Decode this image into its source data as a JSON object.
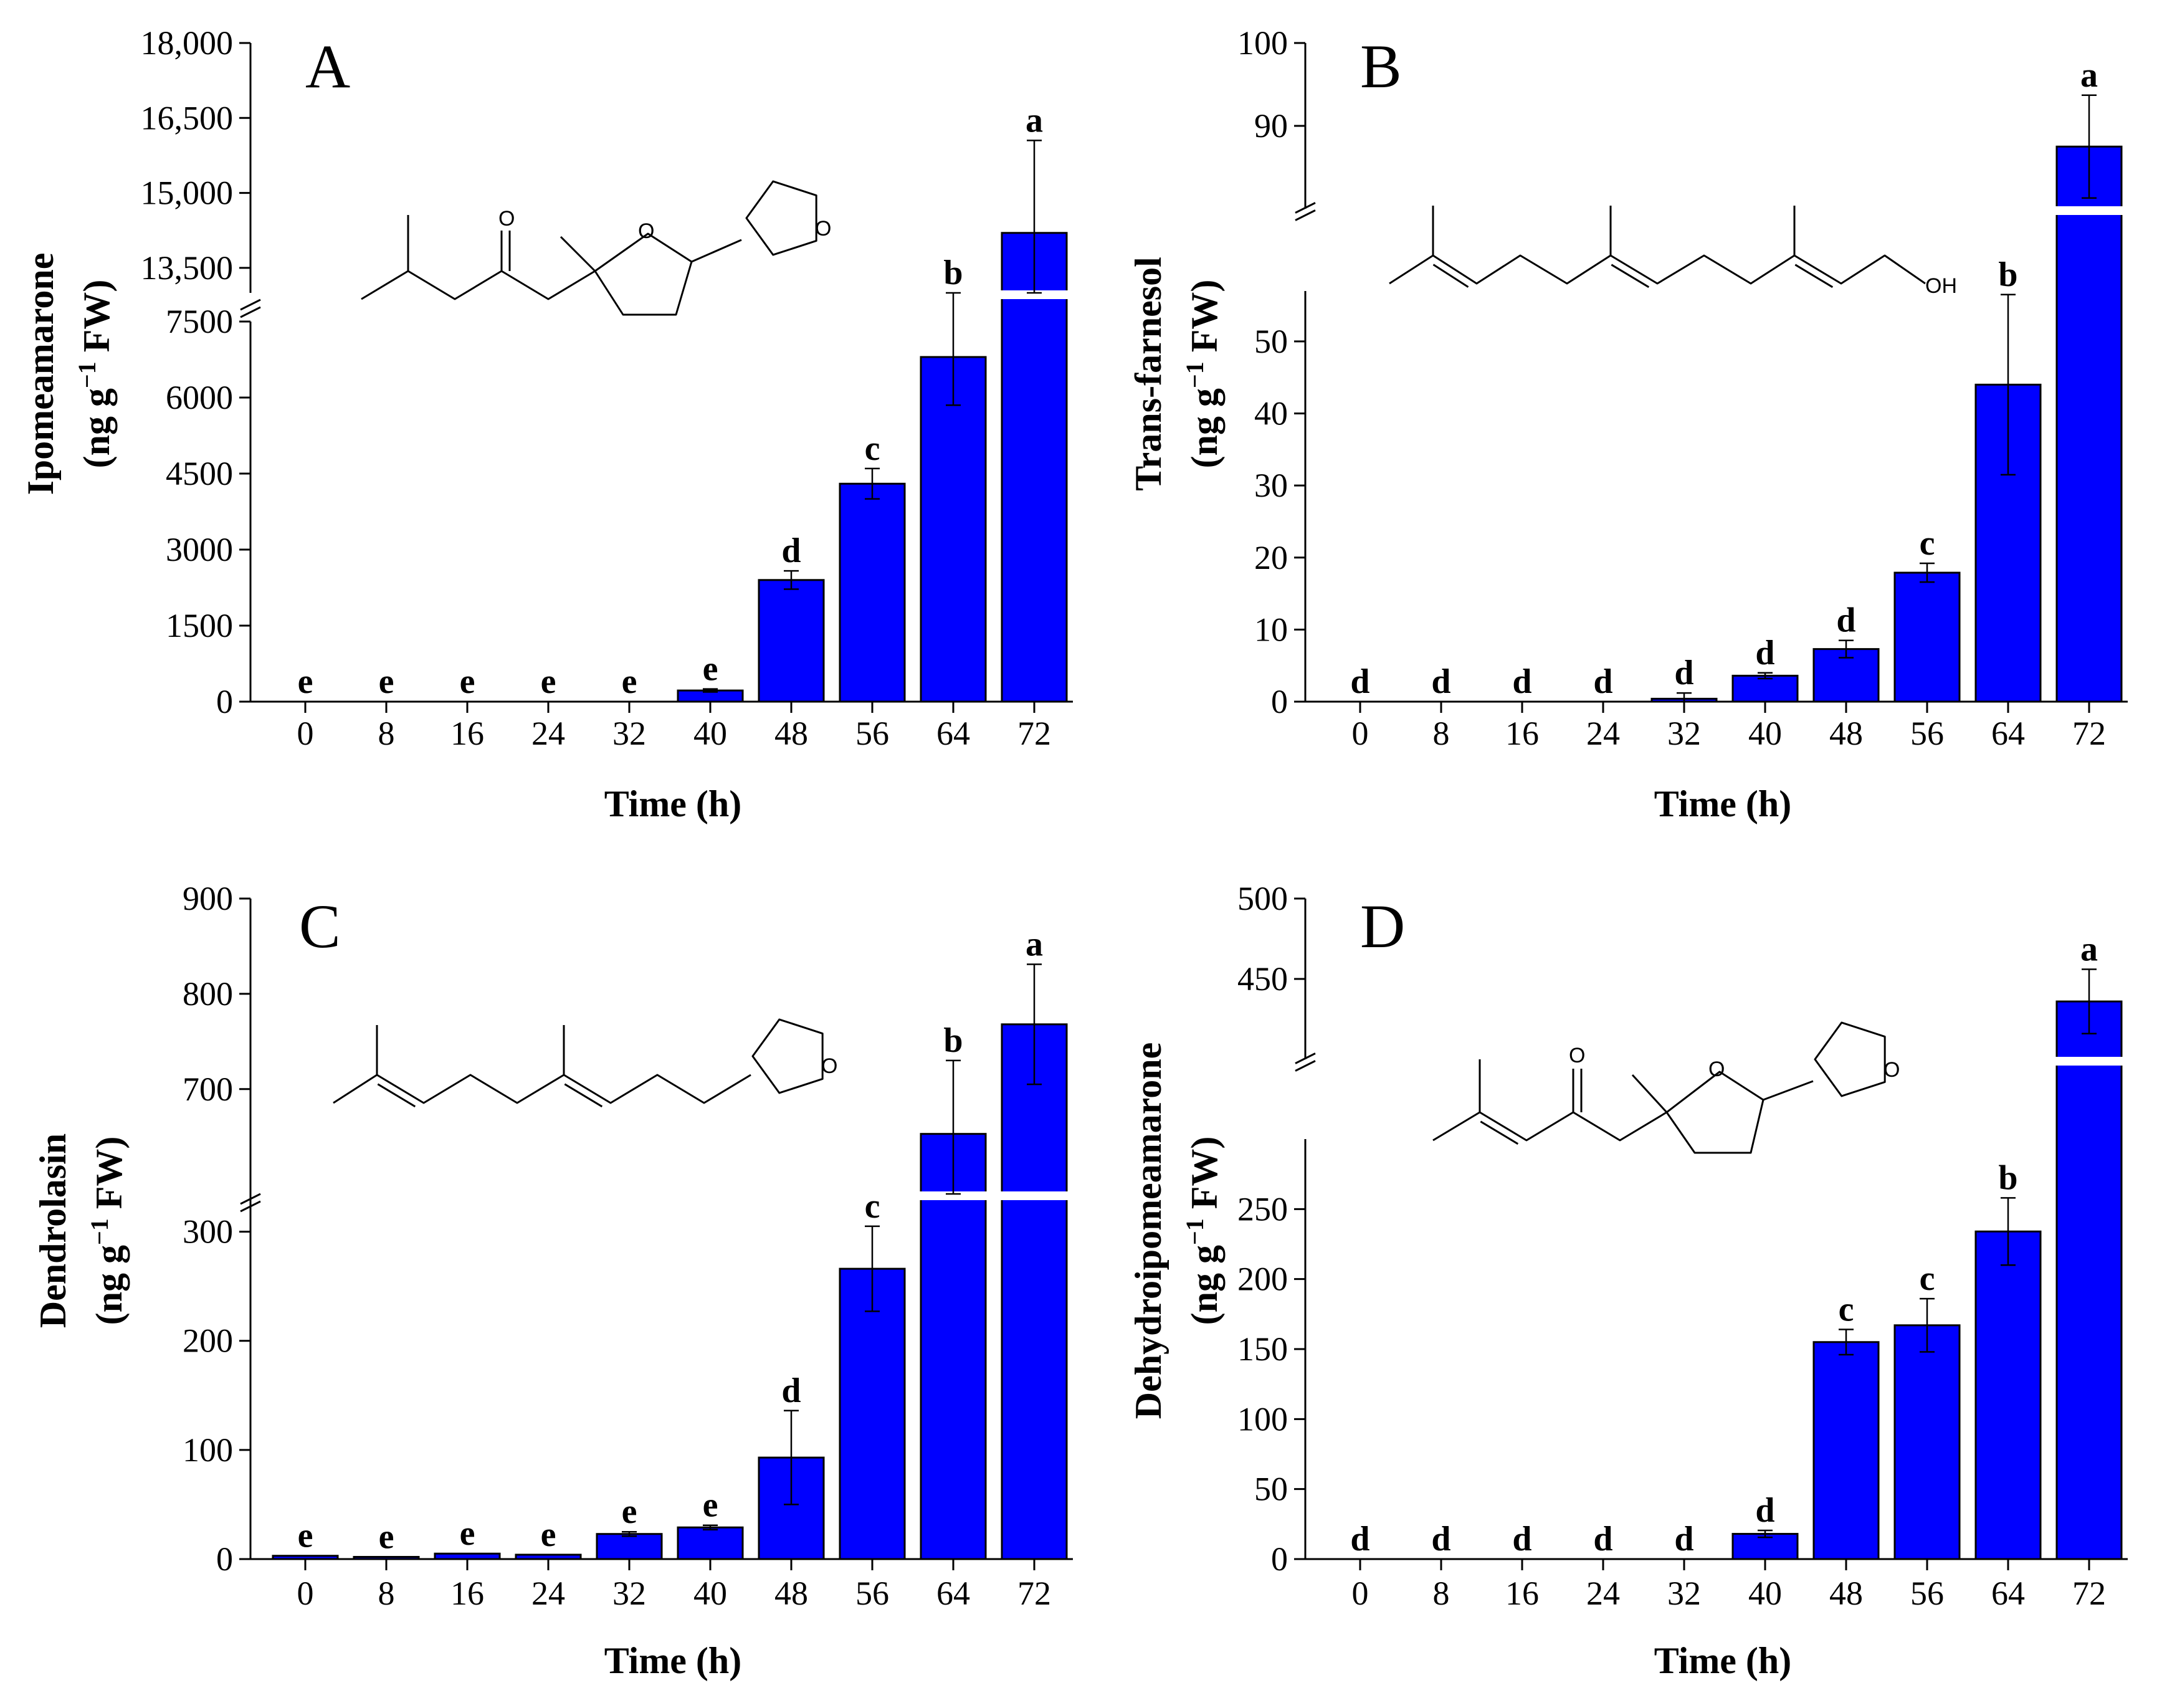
{
  "colors": {
    "bar": "#0000ff",
    "axis": "#000000",
    "background": "#ffffff"
  },
  "chart_data": [
    {
      "panel": "A",
      "type": "bar",
      "title": "",
      "xlabel": "Time (h)",
      "ylabel": "Ipomeamarone",
      "ylabel_unit_prefix": "(ng g",
      "ylabel_unit_sup": "−1",
      "ylabel_unit_suffix": " FW)",
      "categories": [
        "0",
        "8",
        "16",
        "24",
        "32",
        "40",
        "48",
        "56",
        "64",
        "72"
      ],
      "values": [
        0,
        0,
        0,
        0,
        0,
        220,
        2400,
        4300,
        6800,
        14200
      ],
      "errors": [
        0,
        0,
        0,
        0,
        0,
        30,
        180,
        300,
        950,
        1850
      ],
      "letters": [
        "e",
        "e",
        "e",
        "e",
        "e",
        "e",
        "d",
        "c",
        "b",
        "a"
      ],
      "lower_axis": {
        "range": [
          0,
          7500
        ],
        "ticks": [
          0,
          1500,
          3000,
          4500,
          6000,
          7500
        ],
        "tick_labels": [
          "0",
          "1500",
          "3000",
          "4500",
          "6000",
          "7500"
        ]
      },
      "upper_axis": {
        "range": [
          13000,
          18000
        ],
        "ticks": [
          13500,
          15000,
          16500,
          18000
        ],
        "tick_labels": [
          "13,500",
          "15,000",
          "16,500",
          "18,000"
        ]
      },
      "molecule": "ipomeamarone-structure"
    },
    {
      "panel": "B",
      "type": "bar",
      "title": "",
      "xlabel": "Time (h)",
      "ylabel": "Trans-farnesol",
      "ylabel_unit_prefix": "(ng g",
      "ylabel_unit_sup": "−1",
      "ylabel_unit_suffix": " FW)",
      "categories": [
        "0",
        "8",
        "16",
        "24",
        "32",
        "40",
        "48",
        "56",
        "64",
        "72"
      ],
      "values": [
        0,
        0,
        0,
        0,
        0.4,
        3.6,
        7.3,
        17.9,
        44.0,
        87.5
      ],
      "errors": [
        0,
        0,
        0,
        0,
        0.8,
        0.4,
        1.2,
        1.3,
        12.5,
        6.2
      ],
      "letters": [
        "d",
        "d",
        "d",
        "d",
        "d",
        "d",
        "d",
        "c",
        "b",
        "a"
      ],
      "lower_axis": {
        "range": [
          0,
          57
        ],
        "ticks": [
          0,
          10,
          20,
          30,
          40,
          50
        ],
        "tick_labels": [
          "0",
          "10",
          "20",
          "30",
          "40",
          "50"
        ]
      },
      "upper_axis": {
        "range": [
          80,
          100
        ],
        "ticks": [
          90,
          100
        ],
        "tick_labels": [
          "90",
          "100"
        ]
      },
      "molecule": "trans-farnesol-structure",
      "molecule_label": "OH"
    },
    {
      "panel": "C",
      "type": "bar",
      "title": "",
      "xlabel": "Time (h)",
      "ylabel": "Dendrolasin",
      "ylabel_unit_prefix": "(ng g",
      "ylabel_unit_sup": "−1",
      "ylabel_unit_suffix": " FW)",
      "categories": [
        "0",
        "8",
        "16",
        "24",
        "32",
        "40",
        "48",
        "56",
        "64",
        "72"
      ],
      "values": [
        3,
        2,
        5,
        4,
        23,
        29,
        93,
        266,
        653,
        768
      ],
      "errors": [
        0,
        0,
        0,
        0,
        2,
        2,
        43,
        39,
        77,
        63
      ],
      "letters": [
        "e",
        "e",
        "e",
        "e",
        "e",
        "e",
        "d",
        "c",
        "b",
        "a"
      ],
      "lower_axis": {
        "range": [
          0,
          350
        ],
        "ticks": [
          0,
          100,
          200,
          300
        ],
        "tick_labels": [
          "0",
          "100",
          "200",
          "300"
        ]
      },
      "upper_axis": {
        "range": [
          590,
          900
        ],
        "ticks": [
          700,
          800,
          900
        ],
        "tick_labels": [
          "700",
          "800",
          "900"
        ]
      },
      "molecule": "dendrolasin-structure"
    },
    {
      "panel": "D",
      "type": "bar",
      "title": "",
      "xlabel": "Time (h)",
      "ylabel": "Dehydroipomeamarone",
      "ylabel_unit_prefix": "(ng g",
      "ylabel_unit_sup": "−1",
      "ylabel_unit_suffix": " FW)",
      "categories": [
        "0",
        "8",
        "16",
        "24",
        "32",
        "40",
        "48",
        "56",
        "64",
        "72"
      ],
      "values": [
        0,
        0,
        0,
        0,
        0,
        18,
        155,
        167,
        234,
        436
      ],
      "errors": [
        0,
        0,
        0,
        0,
        0,
        2.5,
        9,
        19,
        24,
        20
      ],
      "letters": [
        "d",
        "d",
        "d",
        "d",
        "d",
        "d",
        "c",
        "c",
        "b",
        "a"
      ],
      "lower_axis": {
        "range": [
          0,
          300
        ],
        "ticks": [
          0,
          50,
          100,
          150,
          200,
          250
        ],
        "tick_labels": [
          "0",
          "50",
          "100",
          "150",
          "200",
          "250"
        ]
      },
      "upper_axis": {
        "range": [
          400,
          500
        ],
        "ticks": [
          450,
          500
        ],
        "tick_labels": [
          "450",
          "500"
        ]
      },
      "molecule": "dehydroipomeamarone-structure"
    }
  ]
}
